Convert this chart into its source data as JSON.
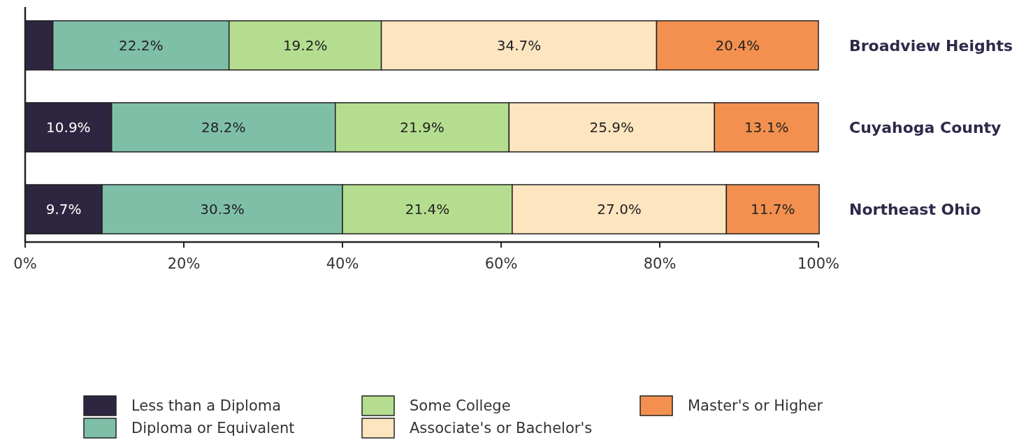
{
  "chart_data": {
    "type": "bar",
    "orientation": "horizontal",
    "stacked": true,
    "categories": [
      "Broadview Heights",
      "Cuyahoga County",
      "Northeast Ohio"
    ],
    "series": [
      {
        "name": "Less than a Diploma",
        "color": "#2e2640",
        "values": [
          3.5,
          10.9,
          9.7
        ],
        "value_labels": [
          null,
          "10.9%",
          "9.7%"
        ]
      },
      {
        "name": "Diploma or Equivalent",
        "color": "#7fbfa8",
        "values": [
          22.2,
          28.2,
          30.3
        ],
        "value_labels": [
          "22.2%",
          "28.2%",
          "30.3%"
        ]
      },
      {
        "name": "Some College",
        "color": "#b5dd8f",
        "values": [
          19.2,
          21.9,
          21.4
        ],
        "value_labels": [
          "19.2%",
          "21.9%",
          "21.4%"
        ]
      },
      {
        "name": "Associate's or Bachelor's",
        "color": "#fde5c0",
        "values": [
          34.7,
          25.9,
          27.0
        ],
        "value_labels": [
          "34.7%",
          "25.9%",
          "27.0%"
        ]
      },
      {
        "name": "Master's or Higher",
        "color": "#f4904f",
        "values": [
          20.4,
          13.1,
          11.7
        ],
        "value_labels": [
          "20.4%",
          "13.1%",
          "11.7%"
        ]
      }
    ],
    "xlim": [
      0,
      100
    ],
    "xticks": [
      {
        "value": 0,
        "label": "0%"
      },
      {
        "value": 20,
        "label": "20%"
      },
      {
        "value": 40,
        "label": "40%"
      },
      {
        "value": 60,
        "label": "60%"
      },
      {
        "value": 80,
        "label": "80%"
      },
      {
        "value": 100,
        "label": "100%"
      }
    ],
    "legend": "bottom",
    "grid": false
  }
}
